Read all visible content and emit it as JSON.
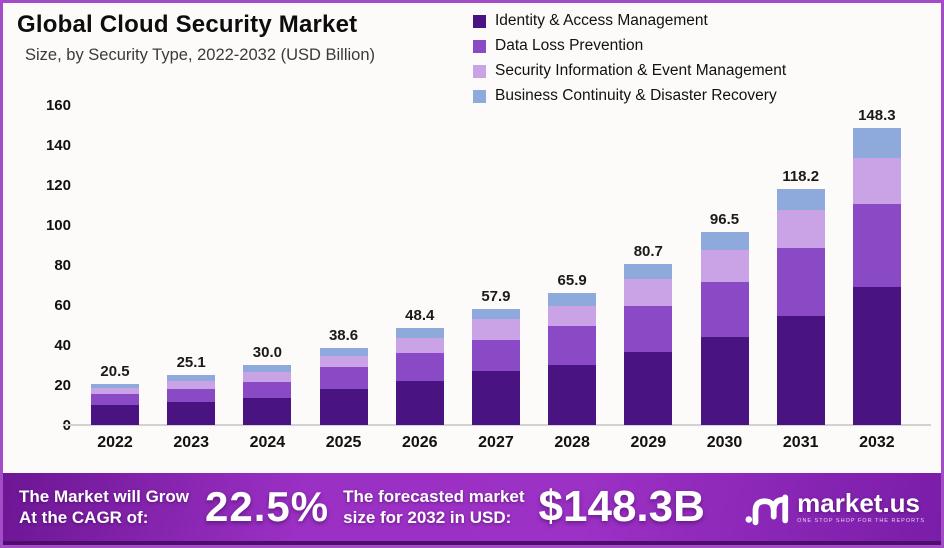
{
  "header": {
    "title": "Global Cloud Security Market",
    "subtitle": "Size, by Security Type, 2022-2032 (USD Billion)"
  },
  "legend": [
    {
      "label": "Identity & Access Management",
      "color": "#4a1382"
    },
    {
      "label": "Data Loss Prevention",
      "color": "#8a49c5"
    },
    {
      "label": "Security Information & Event Management",
      "color": "#c9a3e6"
    },
    {
      "label": "Business Continuity & Disaster Recovery",
      "color": "#8ea9dc"
    }
  ],
  "chart_data": {
    "type": "bar",
    "stacked": true,
    "title": "Global Cloud Security Market Size, by Security Type, 2022-2032 (USD Billion)",
    "xlabel": "",
    "ylabel": "USD Billion",
    "ylim": [
      0,
      160
    ],
    "ytick_step": 20,
    "grid": false,
    "legend_position": "top-right",
    "categories": [
      "2022",
      "2023",
      "2024",
      "2025",
      "2026",
      "2027",
      "2028",
      "2029",
      "2030",
      "2031",
      "2032"
    ],
    "series": [
      {
        "name": "Identity & Access Management",
        "color": "#4a1382",
        "values": [
          9.8,
          11.5,
          13.5,
          17.9,
          22.2,
          26.8,
          29.9,
          36.5,
          43.8,
          54.5,
          69.0
        ]
      },
      {
        "name": "Data Loss Prevention",
        "color": "#8a49c5",
        "values": [
          5.6,
          6.5,
          8.2,
          11.1,
          13.7,
          15.9,
          19.4,
          23.2,
          27.5,
          34.2,
          41.5
        ]
      },
      {
        "name": "Security Information & Event Management",
        "color": "#c9a3e6",
        "values": [
          3.0,
          4.2,
          5.0,
          5.6,
          7.7,
          10.4,
          10.2,
          13.1,
          16.4,
          18.9,
          23.0
        ]
      },
      {
        "name": "Business Continuity & Disaster Recovery",
        "color": "#8ea9dc",
        "values": [
          2.1,
          2.9,
          3.3,
          4.0,
          4.8,
          4.8,
          6.4,
          7.9,
          8.8,
          10.6,
          14.8
        ]
      }
    ],
    "totals": [
      20.5,
      25.1,
      30.0,
      38.6,
      48.4,
      57.9,
      65.9,
      80.7,
      96.5,
      118.2,
      148.3
    ],
    "total_labels": [
      "20.5",
      "25.1",
      "30.0",
      "38.6",
      "48.4",
      "57.9",
      "65.9",
      "80.7",
      "96.5",
      "118.2",
      "148.3"
    ]
  },
  "footer": {
    "cagr_label": "The Market will Grow\nAt the CAGR of:",
    "cagr_value": "22.5%",
    "forecast_label": "The forecasted market\nsize for 2032 in USD:",
    "forecast_value": "$148.3B",
    "brand": "market.us",
    "brand_tagline": "ONE STOP SHOP FOR THE REPORTS"
  },
  "colors": {
    "page_border": "#a44bc8",
    "background": "#fcfbfa",
    "baseline": "#d2d2d2",
    "footer_gradient_start": "#6d1694",
    "footer_gradient_mid": "#9c31c5",
    "footer_gradient_end": "#7a1da8",
    "footer_bottom_strip": "#4d0e6e"
  }
}
